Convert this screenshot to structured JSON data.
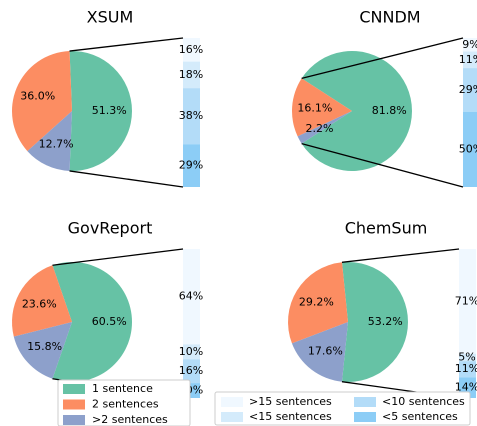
{
  "chart_data": [
    {
      "type": "pie-of-bar",
      "title": "XSUM",
      "values": [
        51.3,
        36.0,
        12.7
      ],
      "value_labels": [
        "51.3%",
        "36.0%",
        "12.7%"
      ],
      "bar_values": [
        16,
        18,
        38,
        29
      ],
      "bar_value_labels": [
        "16%",
        "18%",
        "38%",
        "29%"
      ]
    },
    {
      "type": "pie-of-bar",
      "title": "CNNDM",
      "values": [
        81.8,
        16.1,
        2.2
      ],
      "value_labels": [
        "81.8%",
        "16.1%",
        "2.2%"
      ],
      "bar_values": [
        9,
        11,
        29,
        50
      ],
      "bar_value_labels": [
        "9%",
        "11%",
        "29%",
        "50%"
      ]
    },
    {
      "type": "pie-of-bar",
      "title": "GovReport",
      "values": [
        60.5,
        23.6,
        15.8
      ],
      "value_labels": [
        "60.5%",
        "23.6%",
        "15.8%"
      ],
      "bar_values": [
        64,
        10,
        16,
        10
      ],
      "bar_value_labels": [
        "64%",
        "10%",
        "16%",
        "10%"
      ]
    },
    {
      "type": "pie-of-bar",
      "title": "ChemSum",
      "values": [
        53.2,
        29.2,
        17.6
      ],
      "value_labels": [
        "53.2%",
        "29.2%",
        "17.6%"
      ],
      "bar_values": [
        71,
        5,
        11,
        14
      ],
      "bar_value_labels": [
        "71%",
        "5%",
        "11%",
        "14%"
      ]
    }
  ],
  "pie_legend": {
    "names": [
      "1 sentence",
      "2 sentences",
      ">2 sentences"
    ],
    "colors": [
      "#66c2a5",
      "#fc8d62",
      "#8da0cb"
    ]
  },
  "bar_legend": {
    "names": [
      ">15 sentences",
      "<15 sentences",
      "<10 sentences",
      "<5 sentences"
    ],
    "colors": [
      "#f0f8ff",
      "#d4ebfb",
      "#b3dcf8",
      "#8ccdf6"
    ]
  }
}
